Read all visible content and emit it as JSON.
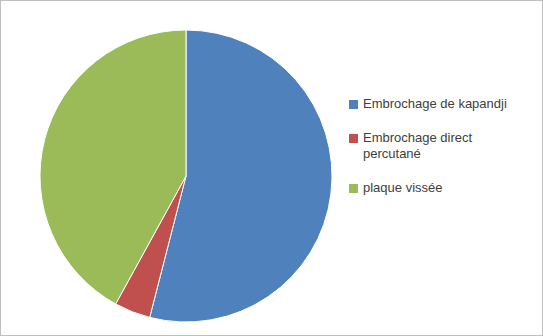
{
  "chart_data": {
    "type": "pie",
    "categories": [
      "Embrochage de kapandji",
      "Embrochage direct percutané",
      "plaque vissée"
    ],
    "values": [
      54,
      4,
      42
    ],
    "colors": [
      "#4f81bd",
      "#c0504d",
      "#9bbb59"
    ],
    "legend": "right"
  }
}
